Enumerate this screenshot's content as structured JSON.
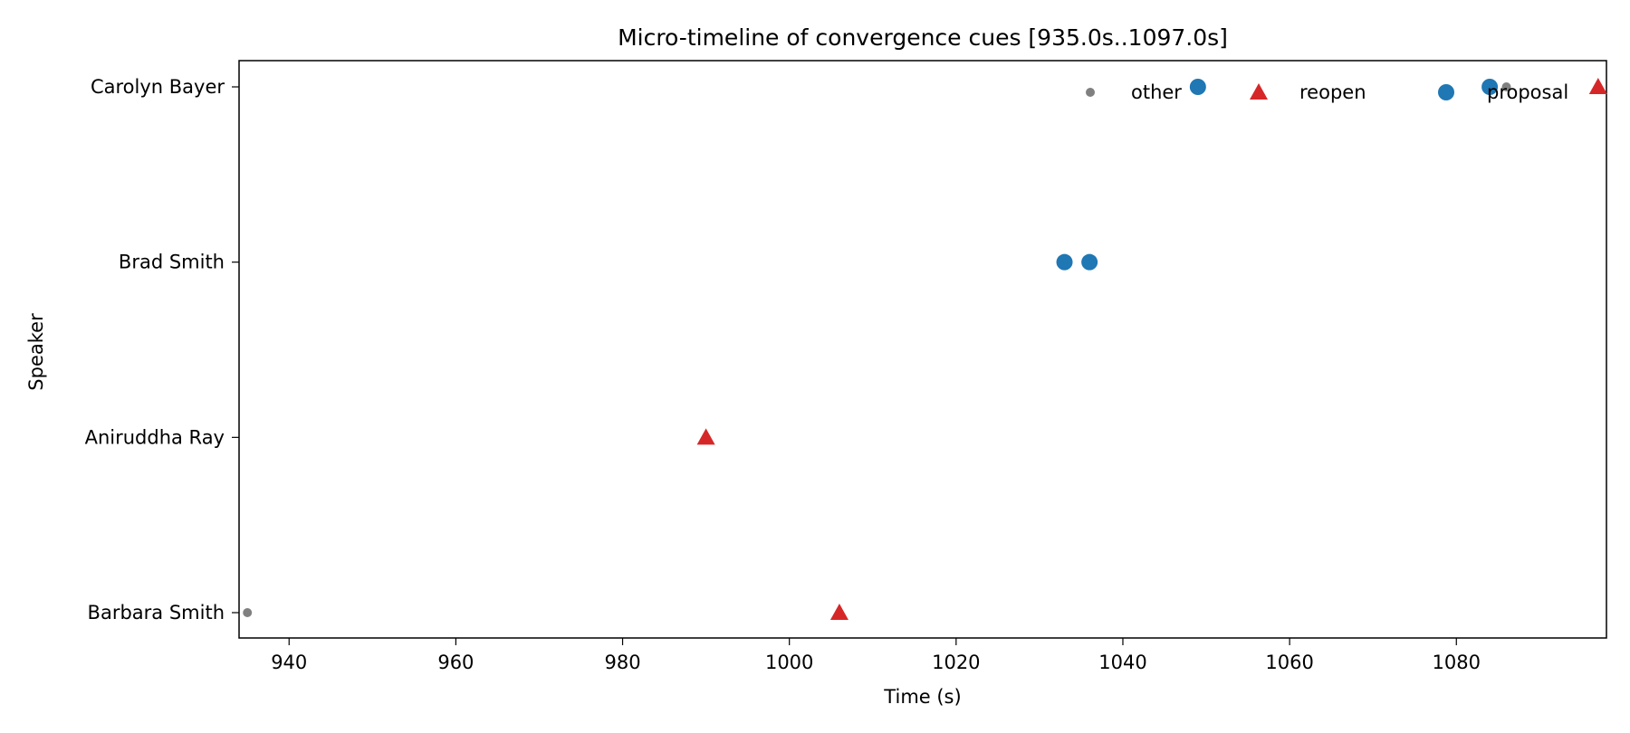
{
  "chart_data": {
    "type": "scatter",
    "title": "Micro-timeline of convergence cues  [935.0s..1097.0s]",
    "xlabel": "Time (s)",
    "ylabel": "Speaker",
    "xlim": [
      934,
      1098
    ],
    "x_ticks": [
      940,
      960,
      980,
      1000,
      1020,
      1040,
      1060,
      1080
    ],
    "categories": [
      "Carolyn Bayer",
      "Brad Smith",
      "Aniruddha Ray",
      "Barbara Smith"
    ],
    "grid": false,
    "legend_position": "top-right",
    "series": [
      {
        "name": "other",
        "marker": "small-circle",
        "color": "#808080",
        "points": [
          {
            "x": 935,
            "speaker": "Barbara Smith"
          },
          {
            "x": 1086,
            "speaker": "Carolyn Bayer"
          }
        ]
      },
      {
        "name": "reopen",
        "marker": "triangle",
        "color": "#d62728",
        "points": [
          {
            "x": 990,
            "speaker": "Aniruddha Ray"
          },
          {
            "x": 1006,
            "speaker": "Barbara Smith"
          },
          {
            "x": 1097,
            "speaker": "Carolyn Bayer"
          }
        ]
      },
      {
        "name": "proposal",
        "marker": "circle",
        "color": "#1f77b4",
        "points": [
          {
            "x": 1033,
            "speaker": "Brad Smith"
          },
          {
            "x": 1036,
            "speaker": "Brad Smith"
          },
          {
            "x": 1049,
            "speaker": "Carolyn Bayer"
          },
          {
            "x": 1084,
            "speaker": "Carolyn Bayer"
          }
        ]
      }
    ]
  }
}
